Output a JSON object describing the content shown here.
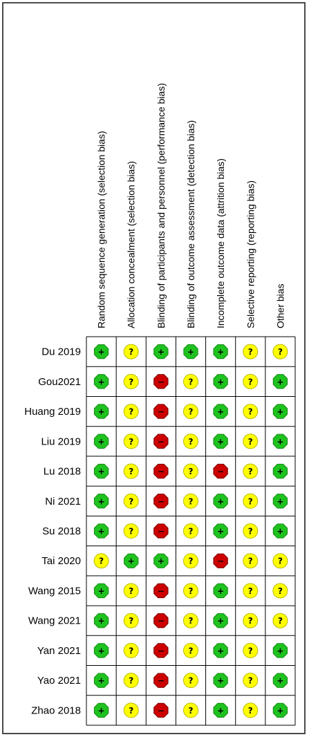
{
  "chart_data": {
    "type": "table",
    "domains": [
      "Random sequence generation (selection bias)",
      "Allocation concealment (selection bias)",
      "Blinding of participants and personnel (performance bias)",
      "Blinding of outcome assessment (detection bias)",
      "Incomplete outcome data (attrition bias)",
      "Selective reporting (reporting bias)",
      "Other bias"
    ],
    "studies": [
      {
        "name": "Du 2019",
        "ratings": [
          "low",
          "unclear",
          "low",
          "low",
          "low",
          "unclear",
          "unclear"
        ]
      },
      {
        "name": "Gou2021",
        "ratings": [
          "low",
          "unclear",
          "high",
          "unclear",
          "low",
          "unclear",
          "low"
        ]
      },
      {
        "name": "Huang 2019",
        "ratings": [
          "low",
          "unclear",
          "high",
          "unclear",
          "low",
          "unclear",
          "low"
        ]
      },
      {
        "name": "Liu 2019",
        "ratings": [
          "low",
          "unclear",
          "high",
          "unclear",
          "low",
          "unclear",
          "low"
        ]
      },
      {
        "name": "Lu 2018",
        "ratings": [
          "low",
          "unclear",
          "high",
          "unclear",
          "high",
          "unclear",
          "low"
        ]
      },
      {
        "name": "Ni 2021",
        "ratings": [
          "low",
          "unclear",
          "high",
          "unclear",
          "low",
          "unclear",
          "low"
        ]
      },
      {
        "name": "Su 2018",
        "ratings": [
          "low",
          "unclear",
          "high",
          "unclear",
          "low",
          "unclear",
          "low"
        ]
      },
      {
        "name": "Tai 2020",
        "ratings": [
          "unclear",
          "low",
          "low",
          "unclear",
          "high",
          "unclear",
          "unclear"
        ]
      },
      {
        "name": "Wang 2015",
        "ratings": [
          "low",
          "unclear",
          "high",
          "unclear",
          "low",
          "unclear",
          "unclear"
        ]
      },
      {
        "name": "Wang 2021",
        "ratings": [
          "low",
          "unclear",
          "high",
          "unclear",
          "low",
          "unclear",
          "unclear"
        ]
      },
      {
        "name": "Yan 2021",
        "ratings": [
          "low",
          "unclear",
          "high",
          "unclear",
          "low",
          "unclear",
          "low"
        ]
      },
      {
        "name": "Yao 2021",
        "ratings": [
          "low",
          "unclear",
          "high",
          "unclear",
          "low",
          "unclear",
          "low"
        ]
      },
      {
        "name": "Zhao 2018",
        "ratings": [
          "low",
          "unclear",
          "high",
          "unclear",
          "low",
          "unclear",
          "low"
        ]
      }
    ],
    "rating_styles": {
      "low": {
        "symbol": "+",
        "color": "#1fc21f"
      },
      "unclear": {
        "symbol": "?",
        "color": "#ffff00"
      },
      "high": {
        "symbol": "−",
        "color": "#cc0000"
      }
    }
  }
}
